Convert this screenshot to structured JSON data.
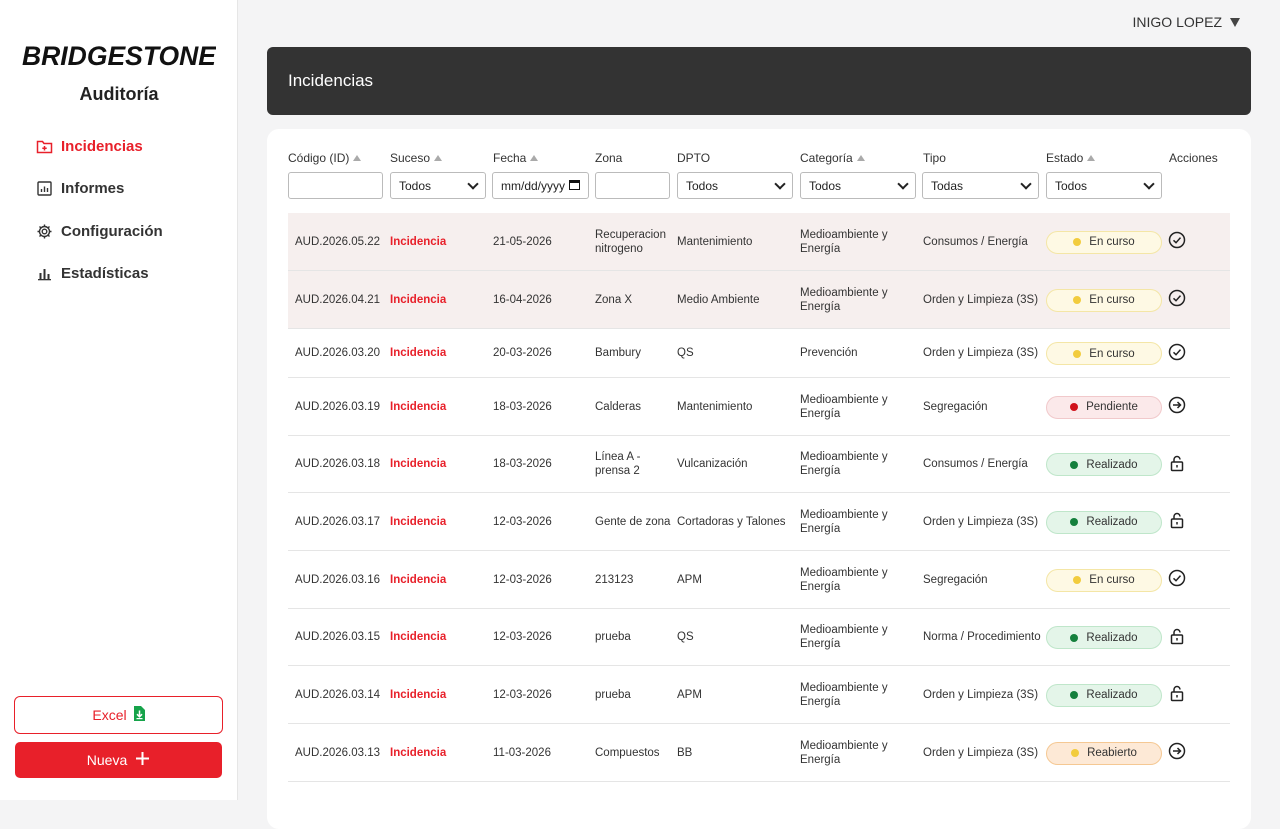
{
  "brand": {
    "logo_text": "BRIDGESTONE",
    "app_title": "Auditoría",
    "accent": "#e8202a"
  },
  "sidebar": {
    "items": [
      {
        "label": "Incidencias",
        "icon": "folder-plus-icon",
        "active": true
      },
      {
        "label": "Informes",
        "icon": "report-chart-icon",
        "active": false
      },
      {
        "label": "Configuración",
        "icon": "gear-icon",
        "active": false
      },
      {
        "label": "Estadísticas",
        "icon": "bar-chart-icon",
        "active": false
      }
    ],
    "excel_label": "Excel",
    "nueva_label": "Nueva"
  },
  "user": {
    "name": "INIGO LOPEZ"
  },
  "header": {
    "title": "Incidencias"
  },
  "table": {
    "columns": [
      "Código (ID)",
      "Suceso",
      "Fecha",
      "Zona",
      "DPTO",
      "Categoría",
      "Tipo",
      "Estado",
      "Acciones"
    ],
    "filters": {
      "codigo": "",
      "suceso": "Todos",
      "fecha_placeholder": "mm/dd/yyyy",
      "zona": "",
      "dpto": "Todos",
      "categoria": "Todos",
      "tipo": "Todas",
      "estado": "Todos"
    },
    "rows": [
      {
        "id": "AUD.2026.05.22",
        "suceso": "Incidencia",
        "fecha": "21-05-2026",
        "zona": "Recuperacion nitrogeno",
        "dpto": "Mantenimiento",
        "categoria": "Medioambiente y Energía",
        "tipo": "Consumos / Energía",
        "estado": "En curso",
        "estado_key": "encurso",
        "accion": "check-circle-icon"
      },
      {
        "id": "AUD.2026.04.21",
        "suceso": "Incidencia",
        "fecha": "16-04-2026",
        "zona": "Zona X",
        "dpto": "Medio Ambiente",
        "categoria": "Medioambiente y Energía",
        "tipo": "Orden y Limpieza (3S)",
        "estado": "En curso",
        "estado_key": "encurso",
        "accion": "check-circle-icon"
      },
      {
        "id": "AUD.2026.03.20",
        "suceso": "Incidencia",
        "fecha": "20-03-2026",
        "zona": "Bambury",
        "dpto": "QS",
        "categoria": "Prevención",
        "tipo": "Orden y Limpieza (3S)",
        "estado": "En curso",
        "estado_key": "encurso",
        "accion": "check-circle-icon"
      },
      {
        "id": "AUD.2026.03.19",
        "suceso": "Incidencia",
        "fecha": "18-03-2026",
        "zona": "Calderas",
        "dpto": "Mantenimiento",
        "categoria": "Medioambiente y Energía",
        "tipo": "Segregación",
        "estado": "Pendiente",
        "estado_key": "pendiente",
        "accion": "arrow-right-circle-icon"
      },
      {
        "id": "AUD.2026.03.18",
        "suceso": "Incidencia",
        "fecha": "18-03-2026",
        "zona": "Línea A - prensa 2",
        "dpto": "Vulcanización",
        "categoria": "Medioambiente y Energía",
        "tipo": "Consumos / Energía",
        "estado": "Realizado",
        "estado_key": "realizado",
        "accion": "lock-open-icon"
      },
      {
        "id": "AUD.2026.03.17",
        "suceso": "Incidencia",
        "fecha": "12-03-2026",
        "zona": "Gente de zona",
        "dpto": "Cortadoras y Talones",
        "categoria": "Medioambiente y Energía",
        "tipo": "Orden y Limpieza (3S)",
        "estado": "Realizado",
        "estado_key": "realizado",
        "accion": "lock-open-icon"
      },
      {
        "id": "AUD.2026.03.16",
        "suceso": "Incidencia",
        "fecha": "12-03-2026",
        "zona": "213123",
        "dpto": "APM",
        "categoria": "Medioambiente y Energía",
        "tipo": "Segregación",
        "estado": "En curso",
        "estado_key": "encurso",
        "accion": "check-circle-icon"
      },
      {
        "id": "AUD.2026.03.15",
        "suceso": "Incidencia",
        "fecha": "12-03-2026",
        "zona": "prueba",
        "dpto": "QS",
        "categoria": "Medioambiente y Energía",
        "tipo": "Norma / Procedimiento",
        "estado": "Realizado",
        "estado_key": "realizado",
        "accion": "lock-open-icon"
      },
      {
        "id": "AUD.2026.03.14",
        "suceso": "Incidencia",
        "fecha": "12-03-2026",
        "zona": "prueba",
        "dpto": "APM",
        "categoria": "Medioambiente y Energía",
        "tipo": "Orden y Limpieza (3S)",
        "estado": "Realizado",
        "estado_key": "realizado",
        "accion": "lock-open-icon"
      },
      {
        "id": "AUD.2026.03.13",
        "suceso": "Incidencia",
        "fecha": "11-03-2026",
        "zona": "Compuestos",
        "dpto": "BB",
        "categoria": "Medioambiente y Energía",
        "tipo": "Orden y Limpieza (3S)",
        "estado": "Reabierto",
        "estado_key": "reabierto",
        "accion": "arrow-right-circle-icon"
      }
    ]
  }
}
